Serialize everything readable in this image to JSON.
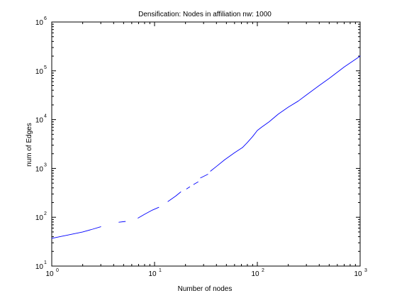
{
  "chart_data": {
    "type": "line",
    "title": "Densification: Nodes in affiliation nw: 1000",
    "xlabel": "Number of nodes",
    "ylabel": "num of Edges",
    "xscale": "log",
    "yscale": "log",
    "xlim": [
      1,
      1000
    ],
    "ylim": [
      10,
      1000000
    ],
    "xticks": [
      {
        "base": "10",
        "exp": "0"
      },
      {
        "base": "10",
        "exp": "1"
      },
      {
        "base": "10",
        "exp": "2"
      },
      {
        "base": "10",
        "exp": "3"
      }
    ],
    "yticks": [
      {
        "base": "10",
        "exp": "1"
      },
      {
        "base": "10",
        "exp": "2"
      },
      {
        "base": "10",
        "exp": "3"
      },
      {
        "base": "10",
        "exp": "4"
      },
      {
        "base": "10",
        "exp": "5"
      },
      {
        "base": "10",
        "exp": "6"
      }
    ],
    "grid": false,
    "line_color": "#0000ff",
    "series": [
      {
        "segments": [
          {
            "x": [
              1,
              1.2,
              1.5,
              2,
              2.5,
              3
            ],
            "y": [
              37,
              40,
              44,
              50,
              57,
              64
            ]
          },
          {
            "x": [
              4.5,
              5.2
            ],
            "y": [
              79,
              82
            ]
          },
          {
            "x": [
              6.9,
              8,
              9.5,
              11
            ],
            "y": [
              96,
              115,
              140,
              160
            ]
          },
          {
            "x": [
              13.5,
              16,
              18
            ],
            "y": [
              210,
              270,
              330
            ]
          },
          {
            "x": [
              20.5,
              22
            ],
            "y": [
              380,
              420
            ]
          },
          {
            "x": [
              24,
              26.5
            ],
            "y": [
              470,
              530
            ]
          },
          {
            "x": [
              28,
              33
            ],
            "y": [
              640,
              760
            ]
          },
          {
            "x": [
              35,
              40,
              48,
              60,
              72
            ],
            "y": [
              880,
              1100,
              1500,
              2100,
              2700
            ]
          },
          {
            "x": [
              72,
              80,
              90,
              100,
              110,
              130,
              160,
              200,
              250,
              300,
              400,
              500,
              700,
              1000
            ],
            "y": [
              2700,
              3400,
              4500,
              6000,
              7000,
              9000,
              13000,
              18000,
              24000,
              32000,
              50000,
              70000,
              120000,
              200000
            ]
          }
        ]
      }
    ]
  }
}
